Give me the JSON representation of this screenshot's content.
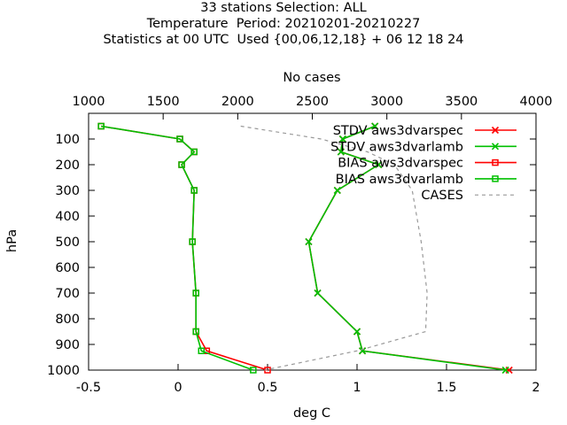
{
  "title_lines": [
    "33 stations Selection: ALL",
    "Temperature  Period: 20210201-20210227",
    "Statistics at 00 UTC  Used {00,06,12,18} + 06 12 18 24"
  ],
  "chart_data": {
    "type": "line",
    "xlabel": "deg C",
    "ylabel": "hPa",
    "x2label": "No cases",
    "xlim": [
      -0.5,
      2
    ],
    "x2lim": [
      1000,
      4000
    ],
    "ylim": [
      1000,
      0
    ],
    "x_ticks": [
      "-0.5",
      "0",
      "0.5",
      "1",
      "1.5",
      "2"
    ],
    "x2_ticks": [
      "1000",
      "1500",
      "2000",
      "2500",
      "3000",
      "3500",
      "4000"
    ],
    "y_ticks": [
      "100",
      "200",
      "300",
      "400",
      "500",
      "600",
      "700",
      "800",
      "900",
      "1000"
    ],
    "grid": false,
    "legend_position": "top-right",
    "levels": [
      50,
      100,
      150,
      200,
      300,
      500,
      700,
      850,
      925,
      1000
    ],
    "series": [
      {
        "name": "STDV aws3dvarspec",
        "axis": "x",
        "color": "#ff0000",
        "marker": "x",
        "values": [
          1.1,
          0.92,
          0.91,
          1.12,
          0.89,
          0.73,
          0.78,
          1.0,
          1.03,
          1.85
        ]
      },
      {
        "name": "STDV aws3dvarlamb",
        "axis": "x",
        "color": "#00c000",
        "marker": "x",
        "values": [
          1.1,
          0.92,
          0.91,
          1.12,
          0.89,
          0.73,
          0.78,
          1.0,
          1.03,
          1.83
        ]
      },
      {
        "name": "BIAS aws3dvarspec",
        "axis": "x",
        "color": "#ff0000",
        "marker": "square",
        "values": [
          -0.43,
          0.01,
          0.09,
          0.02,
          0.09,
          0.08,
          0.1,
          0.1,
          0.16,
          0.5
        ]
      },
      {
        "name": "BIAS aws3dvarlamb",
        "axis": "x",
        "color": "#00c000",
        "marker": "square",
        "values": [
          -0.43,
          0.01,
          0.09,
          0.02,
          0.09,
          0.08,
          0.1,
          0.1,
          0.13,
          0.42
        ]
      },
      {
        "name": "CASES",
        "axis": "x2",
        "color": "#999999",
        "marker": "none",
        "dashed": true,
        "values": [
          2020,
          2560,
          2870,
          3050,
          3170,
          3230,
          3270,
          3260,
          2800,
          2180
        ]
      }
    ]
  }
}
